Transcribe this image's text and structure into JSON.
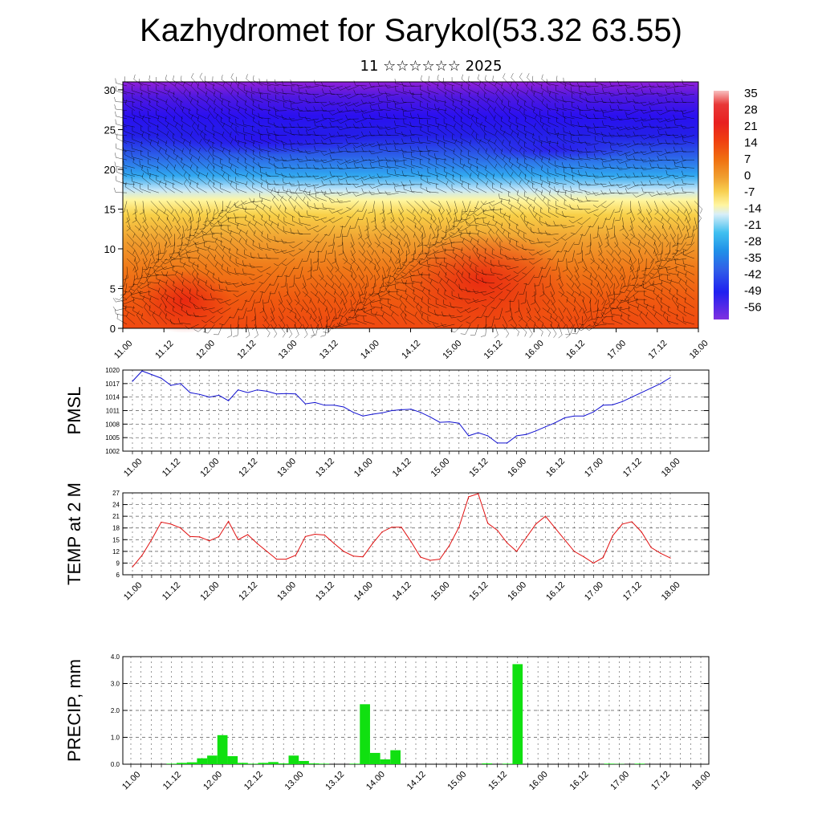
{
  "header": {
    "title": "Kazhydromet for Sarykol(53.32 63.55)",
    "subtitle": "11 ☆☆☆☆☆☆ 2025"
  },
  "time_labels": [
    "11.00",
    "11.12",
    "12.00",
    "12.12",
    "13.00",
    "13.12",
    "14.00",
    "14.12",
    "15.00",
    "15.12",
    "16.00",
    "16.12",
    "17.00",
    "17.12",
    "18.00"
  ],
  "chart_data": [
    {
      "type": "heatmap",
      "title": "",
      "y_ticks": [
        0,
        5,
        10,
        15,
        20,
        25,
        30
      ],
      "ylim": [
        0,
        31
      ],
      "colorbar": {
        "labels": [
          "35",
          "28",
          "21",
          "14",
          "7",
          "0",
          "-7",
          "-14",
          "-21",
          "-28",
          "-35",
          "-42",
          "-49",
          "-56"
        ],
        "colors": [
          "#f3b0b0",
          "#e83030",
          "#f04010",
          "#f07010",
          "#f0a030",
          "#f8d050",
          "#fff5a0",
          "#d8eef8",
          "#40c0f0",
          "#2090e8",
          "#3060e8",
          "#3030e8",
          "#2020f0",
          "#8030e0"
        ]
      },
      "overlay": "wind barbs"
    },
    {
      "type": "line",
      "ylabel": "PMSL",
      "ylim": [
        1002,
        1020
      ],
      "y_ticks": [
        1002,
        1005,
        1008,
        1011,
        1014,
        1017,
        1020
      ],
      "color": "#1010d0",
      "values": [
        1017.5,
        1019.8,
        1019.0,
        1018.2,
        1016.6,
        1017.0,
        1015.0,
        1014.6,
        1014.0,
        1014.4,
        1013.2,
        1015.6,
        1015.0,
        1015.6,
        1015.3,
        1014.7,
        1014.8,
        1014.7,
        1012.5,
        1012.8,
        1012.2,
        1012.2,
        1011.8,
        1010.6,
        1009.8,
        1010.2,
        1010.5,
        1011.0,
        1011.2,
        1011.3,
        1010.6,
        1009.6,
        1008.4,
        1008.5,
        1008.2,
        1005.4,
        1006.1,
        1005.4,
        1003.8,
        1003.8,
        1005.4,
        1005.7,
        1006.5,
        1007.4,
        1008.3,
        1009.4,
        1009.8,
        1009.8,
        1010.7,
        1012.2,
        1012.3,
        1013.0,
        1014.0,
        1015.0,
        1016.0,
        1017.0,
        1018.3
      ]
    },
    {
      "type": "line",
      "ylabel": "TEMP at 2 M",
      "ylim": [
        6,
        27
      ],
      "y_ticks": [
        6,
        9,
        12,
        15,
        18,
        21,
        24,
        27
      ],
      "color": "#e01010",
      "values": [
        8.0,
        11.0,
        15.0,
        19.5,
        19.0,
        18.0,
        15.8,
        15.7,
        14.7,
        15.8,
        19.7,
        15.0,
        16.3,
        14.0,
        12.0,
        10.0,
        10.0,
        11.0,
        15.8,
        16.4,
        16.2,
        14.0,
        12.0,
        10.8,
        10.6,
        14.0,
        17.0,
        18.2,
        18.2,
        14.5,
        10.5,
        9.7,
        10.0,
        13.5,
        18.2,
        26.0,
        26.8,
        19.2,
        17.4,
        14.2,
        12.0,
        15.5,
        19.0,
        21.0,
        18.0,
        15.0,
        12.0,
        10.6,
        9.0,
        10.4,
        16.0,
        19.0,
        19.6,
        17.0,
        13.0,
        11.5,
        10.3
      ]
    },
    {
      "type": "bar",
      "ylabel": "PRECIP, mm",
      "ylim": [
        0,
        4.0
      ],
      "y_ticks": [
        "0.0",
        "1.0",
        "2.0",
        "3.0",
        "4.0"
      ],
      "color": "#10e010",
      "values": [
        0,
        0,
        0,
        0,
        0.02,
        0.05,
        0.07,
        0.22,
        0.32,
        1.08,
        0.3,
        0.05,
        0.02,
        0.05,
        0.08,
        0.03,
        0.32,
        0.12,
        0.03,
        0.02,
        0,
        0,
        0.02,
        2.23,
        0.42,
        0.18,
        0.52,
        0,
        0,
        0,
        0,
        0,
        0,
        0,
        0,
        0.03,
        0,
        0.02,
        3.72,
        0,
        0,
        0,
        0,
        0,
        0,
        0,
        0,
        0.02,
        0.01,
        0,
        0.02,
        0,
        0,
        0,
        0,
        0,
        0
      ]
    }
  ]
}
